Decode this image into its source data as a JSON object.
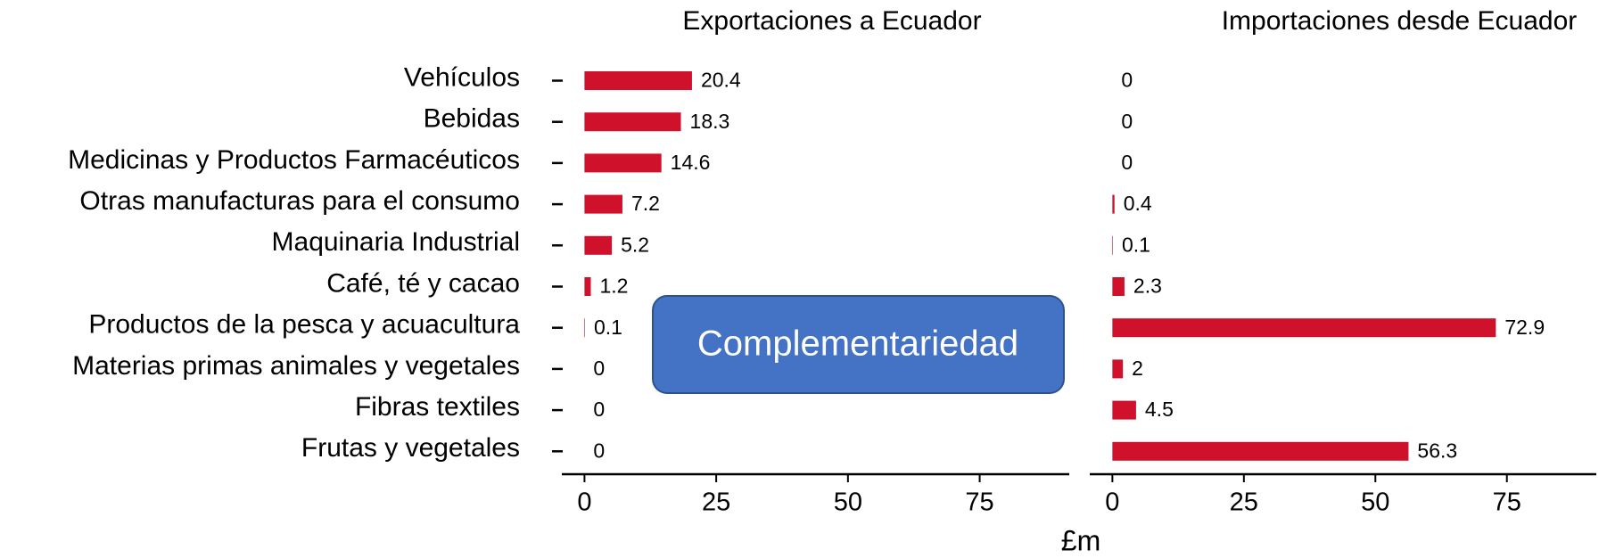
{
  "chart_data": [
    {
      "type": "barh",
      "title": "Exportaciones a Ecuador",
      "categories": [
        "Vehículos",
        "Bebidas",
        "Medicinas y Productos Farmacéuticos",
        "Otras manufacturas para el consumo",
        "Maquinaria Industrial",
        "Café, té y cacao",
        "Productos de la pesca y acuacultura",
        "Materias primas animales y vegetales",
        "Fibras textiles",
        "Frutas y vegetales"
      ],
      "values": [
        20.4,
        18.3,
        14.6,
        7.2,
        5.2,
        1.2,
        0.1,
        0,
        0,
        0
      ],
      "color": "#d0112b",
      "xlim": [
        -4.3,
        92
      ],
      "xticks": [
        0,
        25,
        50,
        75
      ],
      "xlabel": "£m"
    },
    {
      "type": "barh",
      "title": "Importaciones desde Ecuador",
      "values": [
        0,
        0,
        0,
        0.4,
        0.1,
        2.3,
        72.9,
        2,
        4.5,
        56.3
      ],
      "color": "#d0112b",
      "xlim": [
        -4.3,
        92
      ],
      "xticks": [
        0,
        25,
        50,
        75
      ]
    }
  ],
  "annotation": "Complementariedad"
}
